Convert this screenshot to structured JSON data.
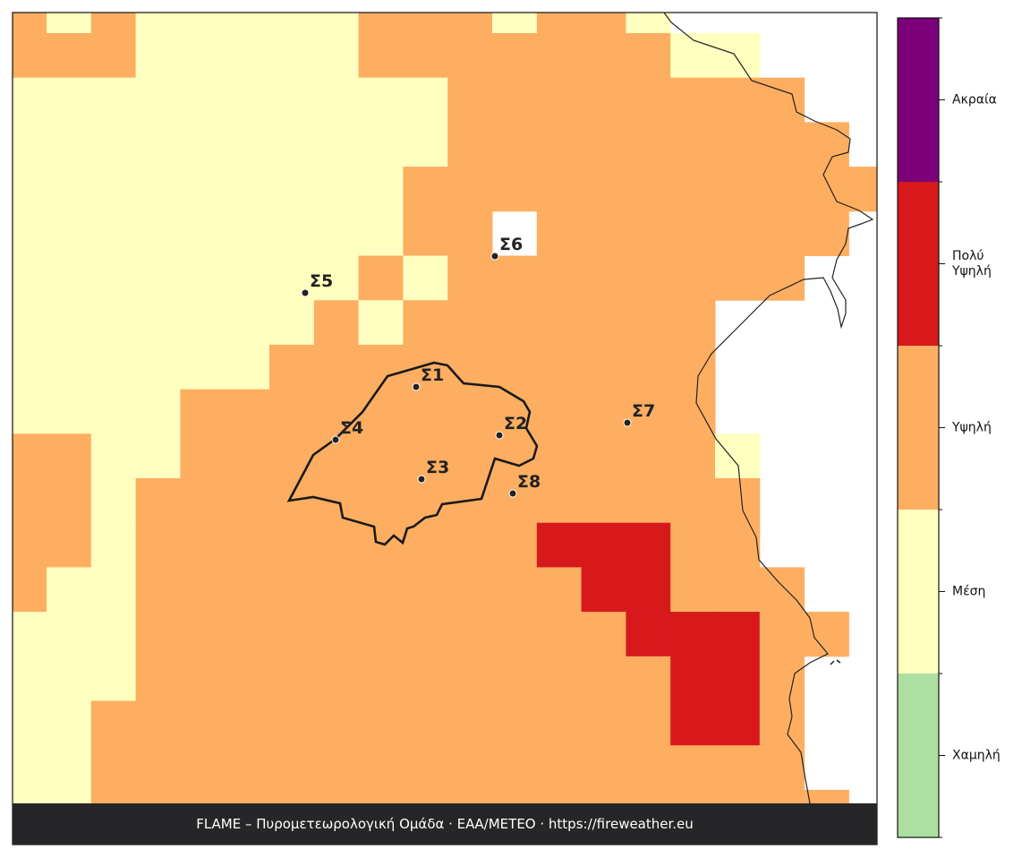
{
  "map": {
    "levels": [
      {
        "name": "Χαμηλή",
        "color": "#addfa1"
      },
      {
        "name": "Μέση",
        "color": "#ffffbf"
      },
      {
        "name": "Υψηλή",
        "color": "#fdae61"
      },
      {
        "name": "Πολύ Υψηλή",
        "color": "#d7191c"
      },
      {
        "name": "Ακραία",
        "color": "#7b0079"
      }
    ],
    "grid": [
      [
        2,
        1,
        2,
        1,
        1,
        1,
        1,
        1,
        2,
        2,
        2,
        1,
        2,
        2,
        1,
        null,
        null,
        null,
        null,
        null
      ],
      [
        2,
        2,
        2,
        1,
        1,
        1,
        1,
        1,
        2,
        2,
        2,
        2,
        2,
        2,
        2,
        1,
        1,
        null,
        null,
        null
      ],
      [
        1,
        1,
        1,
        1,
        1,
        1,
        1,
        1,
        1,
        1,
        2,
        2,
        2,
        2,
        2,
        2,
        2,
        2,
        null,
        null
      ],
      [
        1,
        1,
        1,
        1,
        1,
        1,
        1,
        1,
        1,
        1,
        2,
        2,
        2,
        2,
        2,
        2,
        2,
        2,
        2,
        null
      ],
      [
        1,
        1,
        1,
        1,
        1,
        1,
        1,
        1,
        1,
        2,
        2,
        2,
        2,
        2,
        2,
        2,
        2,
        2,
        2,
        2
      ],
      [
        1,
        1,
        1,
        1,
        1,
        1,
        1,
        1,
        1,
        2,
        2,
        null,
        2,
        2,
        2,
        2,
        2,
        2,
        2,
        null
      ],
      [
        1,
        1,
        1,
        1,
        1,
        1,
        1,
        1,
        2,
        1,
        2,
        2,
        2,
        2,
        2,
        2,
        2,
        2,
        null,
        null
      ],
      [
        1,
        1,
        1,
        1,
        1,
        1,
        1,
        2,
        1,
        2,
        2,
        2,
        2,
        2,
        2,
        2,
        null,
        null,
        null,
        null
      ],
      [
        1,
        1,
        1,
        1,
        1,
        1,
        2,
        2,
        2,
        2,
        2,
        2,
        2,
        2,
        2,
        2,
        null,
        null,
        null,
        null
      ],
      [
        1,
        1,
        1,
        1,
        2,
        2,
        2,
        2,
        2,
        2,
        2,
        2,
        2,
        2,
        2,
        2,
        null,
        null,
        null,
        null
      ],
      [
        2,
        2,
        1,
        1,
        2,
        2,
        2,
        2,
        2,
        2,
        2,
        2,
        2,
        2,
        2,
        2,
        1,
        null,
        null,
        null
      ],
      [
        2,
        2,
        1,
        2,
        2,
        2,
        2,
        2,
        2,
        2,
        2,
        2,
        2,
        2,
        2,
        2,
        2,
        null,
        null,
        null
      ],
      [
        2,
        2,
        1,
        2,
        2,
        2,
        2,
        2,
        2,
        2,
        2,
        2,
        3,
        3,
        3,
        2,
        2,
        null,
        null,
        null
      ],
      [
        2,
        1,
        1,
        2,
        2,
        2,
        2,
        2,
        2,
        2,
        2,
        2,
        2,
        3,
        3,
        2,
        2,
        2,
        null,
        null
      ],
      [
        1,
        1,
        1,
        2,
        2,
        2,
        2,
        2,
        2,
        2,
        2,
        2,
        2,
        2,
        3,
        3,
        3,
        2,
        2,
        null
      ],
      [
        1,
        1,
        1,
        2,
        2,
        2,
        2,
        2,
        2,
        2,
        2,
        2,
        2,
        2,
        2,
        3,
        3,
        2,
        null,
        null
      ],
      [
        1,
        1,
        2,
        2,
        2,
        2,
        2,
        2,
        2,
        2,
        2,
        2,
        2,
        2,
        2,
        3,
        3,
        2,
        null,
        null
      ],
      [
        1,
        1,
        2,
        2,
        2,
        2,
        2,
        2,
        2,
        2,
        2,
        2,
        2,
        2,
        2,
        2,
        2,
        2,
        null,
        null
      ],
      [
        1,
        1,
        2,
        2,
        2,
        2,
        2,
        2,
        2,
        2,
        2,
        2,
        2,
        2,
        2,
        2,
        2,
        2,
        2,
        null
      ]
    ],
    "stations": [
      "Σ1",
      "Σ2",
      "Σ3",
      "Σ4",
      "Σ5",
      "Σ6",
      "Σ7",
      "Σ8"
    ]
  },
  "footer": "FLAME – Πυρομετεωρολογική Ομάδα · ΕΑΑ/METEO · https://fireweather.eu"
}
